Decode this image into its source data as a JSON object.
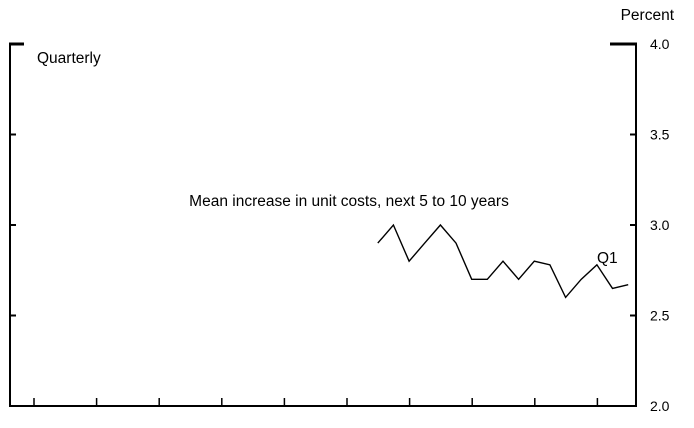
{
  "chart_data": {
    "type": "line",
    "title": "",
    "frequency_label": "Quarterly",
    "unit_label": "Percent",
    "annotation": "Mean increase in unit costs, next 5 to 10 years",
    "end_label": "Q1",
    "ylim": [
      2.0,
      4.0
    ],
    "y_ticks": [
      2.0,
      2.5,
      3.0,
      3.5,
      4.0
    ],
    "y_tick_labels": [
      "2.0",
      "2.5",
      "3.0",
      "3.5",
      "4.0"
    ],
    "x_period_count": 10,
    "x_quarter_count": 40,
    "series": [
      {
        "values": [
          2.9,
          3.0,
          2.8,
          2.9,
          3.0,
          2.9,
          2.7,
          2.7,
          2.8,
          2.7,
          2.8,
          2.78,
          2.6,
          2.7,
          2.78,
          2.65,
          2.67
        ],
        "start_quarter_index": 23
      }
    ]
  }
}
